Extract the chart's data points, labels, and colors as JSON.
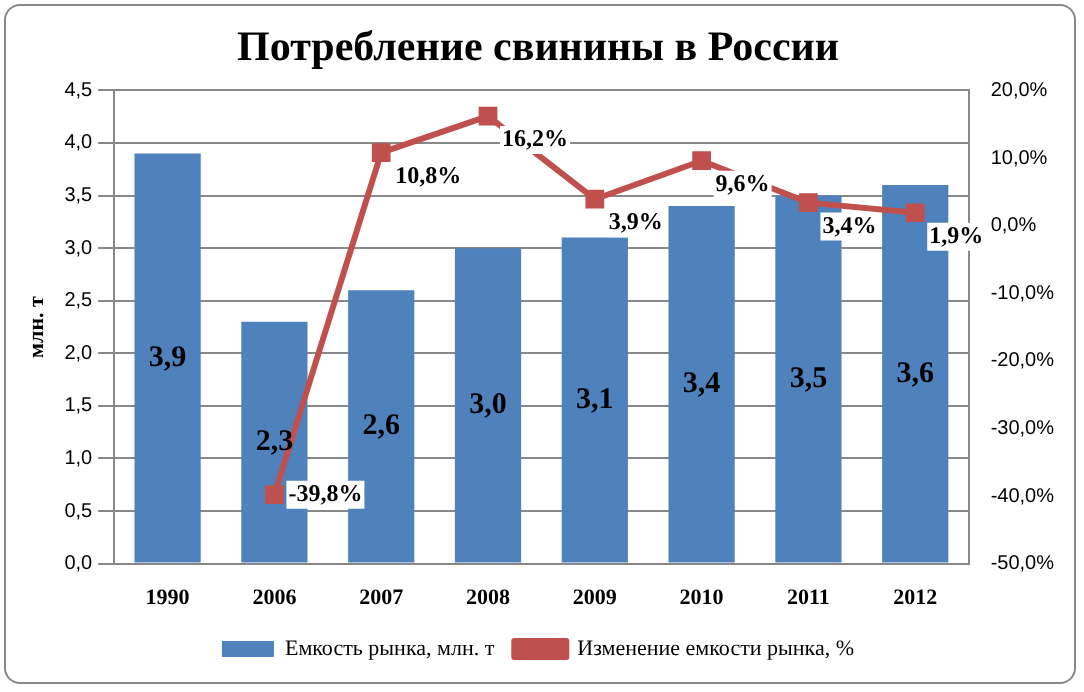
{
  "chart_data": {
    "type": "bar",
    "title": "Потребление свинины в России",
    "ylabel": "млн. т",
    "categories": [
      "1990",
      "2006",
      "2007",
      "2008",
      "2009",
      "2010",
      "2011",
      "2012"
    ],
    "series": [
      {
        "name": "Емкость рынка, млн. т",
        "color": "#4f81bd",
        "values": [
          3.9,
          2.3,
          2.6,
          3.0,
          3.1,
          3.4,
          3.5,
          3.6
        ],
        "value_labels": [
          "3,9",
          "2,3",
          "2,6",
          "3,0",
          "3,1",
          "3,4",
          "3,5",
          "3,6"
        ]
      },
      {
        "name": "Изменение емкости рынка, %",
        "type": "line",
        "axis": "y2",
        "color": "#c0504d",
        "marker": "square",
        "values": [
          null,
          -39.8,
          10.8,
          16.2,
          3.9,
          9.6,
          3.4,
          1.9
        ],
        "value_labels": [
          null,
          "-39,8%",
          "10,8%",
          "16,2%",
          "3,9%",
          "9,6%",
          "3,4%",
          "1,9%"
        ]
      }
    ],
    "ylim": [
      0,
      4.5
    ],
    "yticks": [
      {
        "value": 0,
        "label": "0,0"
      },
      {
        "value": 0.5,
        "label": "0,5"
      },
      {
        "value": 1,
        "label": "1,0"
      },
      {
        "value": 1.5,
        "label": "1,5"
      },
      {
        "value": 2,
        "label": "2,0"
      },
      {
        "value": 2.5,
        "label": "2,5"
      },
      {
        "value": 3,
        "label": "3,0"
      },
      {
        "value": 3.5,
        "label": "3,5"
      },
      {
        "value": 4,
        "label": "4,0"
      },
      {
        "value": 4.5,
        "label": "4,5"
      }
    ],
    "y2lim": [
      -50,
      20
    ],
    "y2ticks": [
      {
        "value": -50,
        "label": "-50,0%"
      },
      {
        "value": -40,
        "label": "-40,0%"
      },
      {
        "value": -30,
        "label": "-30,0%"
      },
      {
        "value": -20,
        "label": "-20,0%"
      },
      {
        "value": -10,
        "label": "-10,0%"
      },
      {
        "value": 0,
        "label": "0,0%"
      },
      {
        "value": 10,
        "label": "10,0%"
      },
      {
        "value": 20,
        "label": "20,0%"
      }
    ],
    "grid": "y",
    "legend": "bottom"
  }
}
